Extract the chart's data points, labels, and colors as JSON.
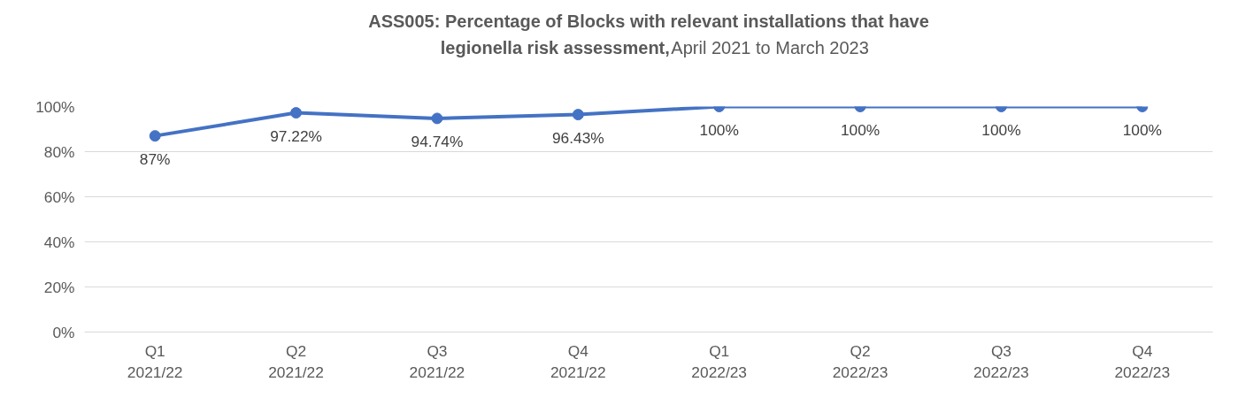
{
  "chart_data": {
    "type": "line",
    "title": "ASS005: Percentage of Blocks with relevant installations that have legionella risk assessment,",
    "subtitle": "April 2021 to March 2023",
    "categories": [
      "Q1\n2021/22",
      "Q2\n2021/22",
      "Q3\n2021/22",
      "Q4\n2021/22",
      "Q1\n2022/23",
      "Q2\n2022/23",
      "Q3\n2022/23",
      "Q4\n2022/23"
    ],
    "series": [
      {
        "color": "#4472c4",
        "values": [
          87,
          97.22,
          94.74,
          96.43,
          100,
          100,
          100,
          100
        ],
        "value_labels": [
          "87%",
          "97.22%",
          "94.74%",
          "96.43%",
          "100%",
          "100%",
          "100%",
          "100%"
        ]
      }
    ],
    "ylim": [
      0,
      100
    ],
    "yticks": [
      {
        "value": 0,
        "label": "0%"
      },
      {
        "value": 20,
        "label": "20%"
      },
      {
        "value": 40,
        "label": "40%"
      },
      {
        "value": 60,
        "label": "60%"
      },
      {
        "value": 80,
        "label": "80%"
      },
      {
        "value": 100,
        "label": "100%"
      }
    ],
    "grid": "y",
    "marker": "circle",
    "line_style": "solid"
  }
}
